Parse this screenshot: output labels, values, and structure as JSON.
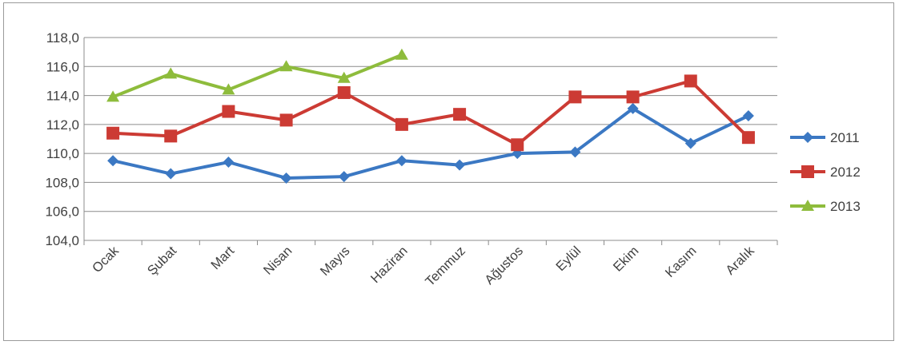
{
  "chart_data": {
    "type": "line",
    "title": "",
    "xlabel": "",
    "ylabel": "",
    "categories": [
      "Ocak",
      "Şubat",
      "Mart",
      "Nisan",
      "Mayıs",
      "Haziran",
      "Temmuz",
      "Ağustos",
      "Eylül",
      "Ekim",
      "Kasım",
      "Aralık"
    ],
    "ylim": [
      104.0,
      118.0
    ],
    "yticks": [
      "104,0",
      "106,0",
      "108,0",
      "110,0",
      "112,0",
      "114,0",
      "116,0",
      "118,0"
    ],
    "ytick_values": [
      104,
      106,
      108,
      110,
      112,
      114,
      116,
      118
    ],
    "grid": true,
    "legend_position": "right",
    "series": [
      {
        "name": "2011",
        "color": "#3b78c3",
        "marker": "diamond",
        "values": [
          109.5,
          108.6,
          109.4,
          108.3,
          108.4,
          109.5,
          109.2,
          110.0,
          110.1,
          113.1,
          110.7,
          112.6
        ]
      },
      {
        "name": "2012",
        "color": "#cc3b34",
        "marker": "square",
        "values": [
          111.4,
          111.2,
          112.9,
          112.3,
          114.2,
          112.0,
          112.7,
          110.6,
          113.9,
          113.9,
          115.0,
          111.1
        ]
      },
      {
        "name": "2013",
        "color": "#8ebc3c",
        "marker": "triangle",
        "values": [
          113.9,
          115.5,
          114.4,
          116.0,
          115.2,
          116.8,
          null,
          null,
          null,
          null,
          null,
          null
        ]
      }
    ]
  }
}
